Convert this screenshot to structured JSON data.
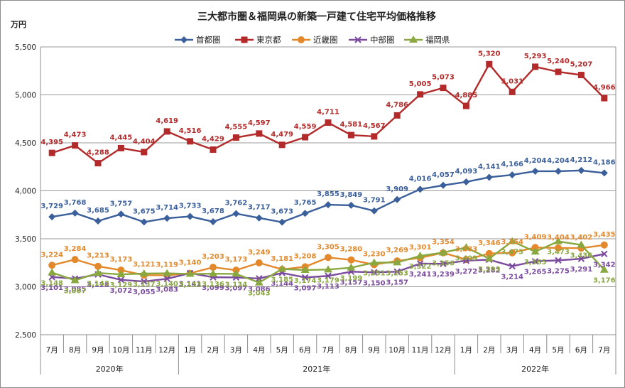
{
  "chart_data": {
    "type": "line",
    "title": "三大都市圏＆福岡県の新築一戸建て住宅平均価格推移",
    "ylabel": "万円",
    "ylim": [
      2500,
      5500
    ],
    "yticks": [
      "2,500",
      "3,000",
      "3,500",
      "4,000",
      "4,500",
      "5,000",
      "5,500"
    ],
    "grid": true,
    "legend_position": "top",
    "categories": [
      "7月",
      "8月",
      "9月",
      "10月",
      "11月",
      "12月",
      "1月",
      "2月",
      "3月",
      "4月",
      "5月",
      "6月",
      "7月",
      "8月",
      "9月",
      "10月",
      "11月",
      "12月",
      "1月",
      "2月",
      "3月",
      "4月",
      "5月",
      "6月",
      "7月"
    ],
    "years": [
      {
        "label": "2020年",
        "count": 6
      },
      {
        "label": "2021年",
        "count": 12
      },
      {
        "label": "2022年",
        "count": 7
      }
    ],
    "series": [
      {
        "name": "首都圏",
        "color": "#3a5f9a",
        "marker": "diamond",
        "values": [
          3729,
          3768,
          3685,
          3757,
          3675,
          3714,
          3733,
          3678,
          3762,
          3717,
          3673,
          3765,
          3855,
          3849,
          3791,
          3909,
          4016,
          4057,
          4093,
          4141,
          4166,
          4204,
          4204,
          4212,
          4186
        ],
        "labels": [
          "3,729",
          "3,768",
          "3,685",
          "3,757",
          "3,675",
          "3,714",
          "3,733",
          "3,678",
          "3,762",
          "3,717",
          "3,673",
          "3,765",
          "3,855",
          "3,849",
          "3,791",
          "3,909",
          "4,016",
          "4,057",
          "4,093",
          "4,141",
          "4,166",
          "4,204",
          "4,204",
          "4,212",
          "4,186"
        ]
      },
      {
        "name": "東京都",
        "color": "#b22a2a",
        "marker": "square",
        "values": [
          4395,
          4473,
          4288,
          4445,
          4404,
          4619,
          4516,
          4429,
          4555,
          4597,
          4479,
          4559,
          4711,
          4581,
          4567,
          4786,
          5005,
          5073,
          4885,
          5320,
          5031,
          5293,
          5240,
          5207,
          4966
        ],
        "labels": [
          "4,395",
          "4,473",
          "4,288",
          "4,445",
          "4,404",
          "4,619",
          "4,516",
          "4,429",
          "4,555",
          "4,597",
          "4,479",
          "4,559",
          "4,711",
          "4,581",
          "4,567",
          "4,786",
          "5,005",
          "5,073",
          "4,885",
          "5,320",
          "5,031",
          "5,293",
          "5,240",
          "5,207",
          "4,966"
        ]
      },
      {
        "name": "近畿圏",
        "color": "#e4892b",
        "marker": "circle",
        "values": [
          3224,
          3284,
          3213,
          3173,
          3121,
          3119,
          3140,
          3203,
          3173,
          3249,
          3181,
          3208,
          3305,
          3280,
          3230,
          3269,
          3301,
          3354,
          3283,
          3346,
          3354,
          3409,
          3404,
          3402,
          3435
        ],
        "labels": [
          "3,224",
          "3,284",
          "3,213",
          "3,173",
          "3,121",
          "3,119",
          "3,140",
          "3,203",
          "3,173",
          "3,249",
          "3,181",
          "3,208",
          "3,305",
          "3,280",
          "3,230",
          "3,269",
          "3,301",
          "3,354",
          "3,283",
          "3,346",
          "3,354",
          "3,409",
          "3,404",
          "3,402",
          "3,435"
        ]
      },
      {
        "name": "中部圏",
        "color": "#7b4b9e",
        "marker": "x",
        "values": [
          3101,
          3085,
          3128,
          3072,
          3055,
          3083,
          3141,
          3099,
          3097,
          3086,
          3144,
          3097,
          3113,
          3157,
          3150,
          3157,
          3241,
          3239,
          3272,
          3282,
          3214,
          3265,
          3275,
          3291,
          3342
        ],
        "labels": [
          "3,101",
          "3,085",
          "3,128",
          "3,072",
          "3,055",
          "3,083",
          "3,141",
          "3,099",
          "3,097",
          "3,086",
          "3,144",
          "3,097",
          "3,113",
          "3,157",
          "3,150",
          "3,157",
          "3,241",
          "3,239",
          "3,272",
          "3,282",
          "3,214",
          "3,265",
          "3,275",
          "3,291",
          "3,342"
        ]
      },
      {
        "name": "福岡県",
        "color": "#8aa840",
        "marker": "triangle",
        "values": [
          3148,
          3067,
          3143,
          3129,
          3137,
          3140,
          3133,
          3136,
          3134,
          3043,
          3185,
          3174,
          3179,
          3199,
          3251,
          3253,
          3322,
          3356,
          3409,
          3293,
          3473,
          3365,
          3473,
          3436,
          3176
        ],
        "labels": [
          "3,148",
          "3,067",
          "3,143",
          "3,129",
          "3,137",
          "3,140",
          "3,133",
          "3,136",
          "3,134",
          "3,043",
          "3,185",
          "3,174",
          "3,179",
          "3,199",
          "3,251",
          "3,253",
          "3,322",
          "3,356",
          "3,409",
          "3,293",
          "3,473",
          "3,365",
          "3,473",
          "3,436",
          "3,176"
        ]
      }
    ]
  }
}
